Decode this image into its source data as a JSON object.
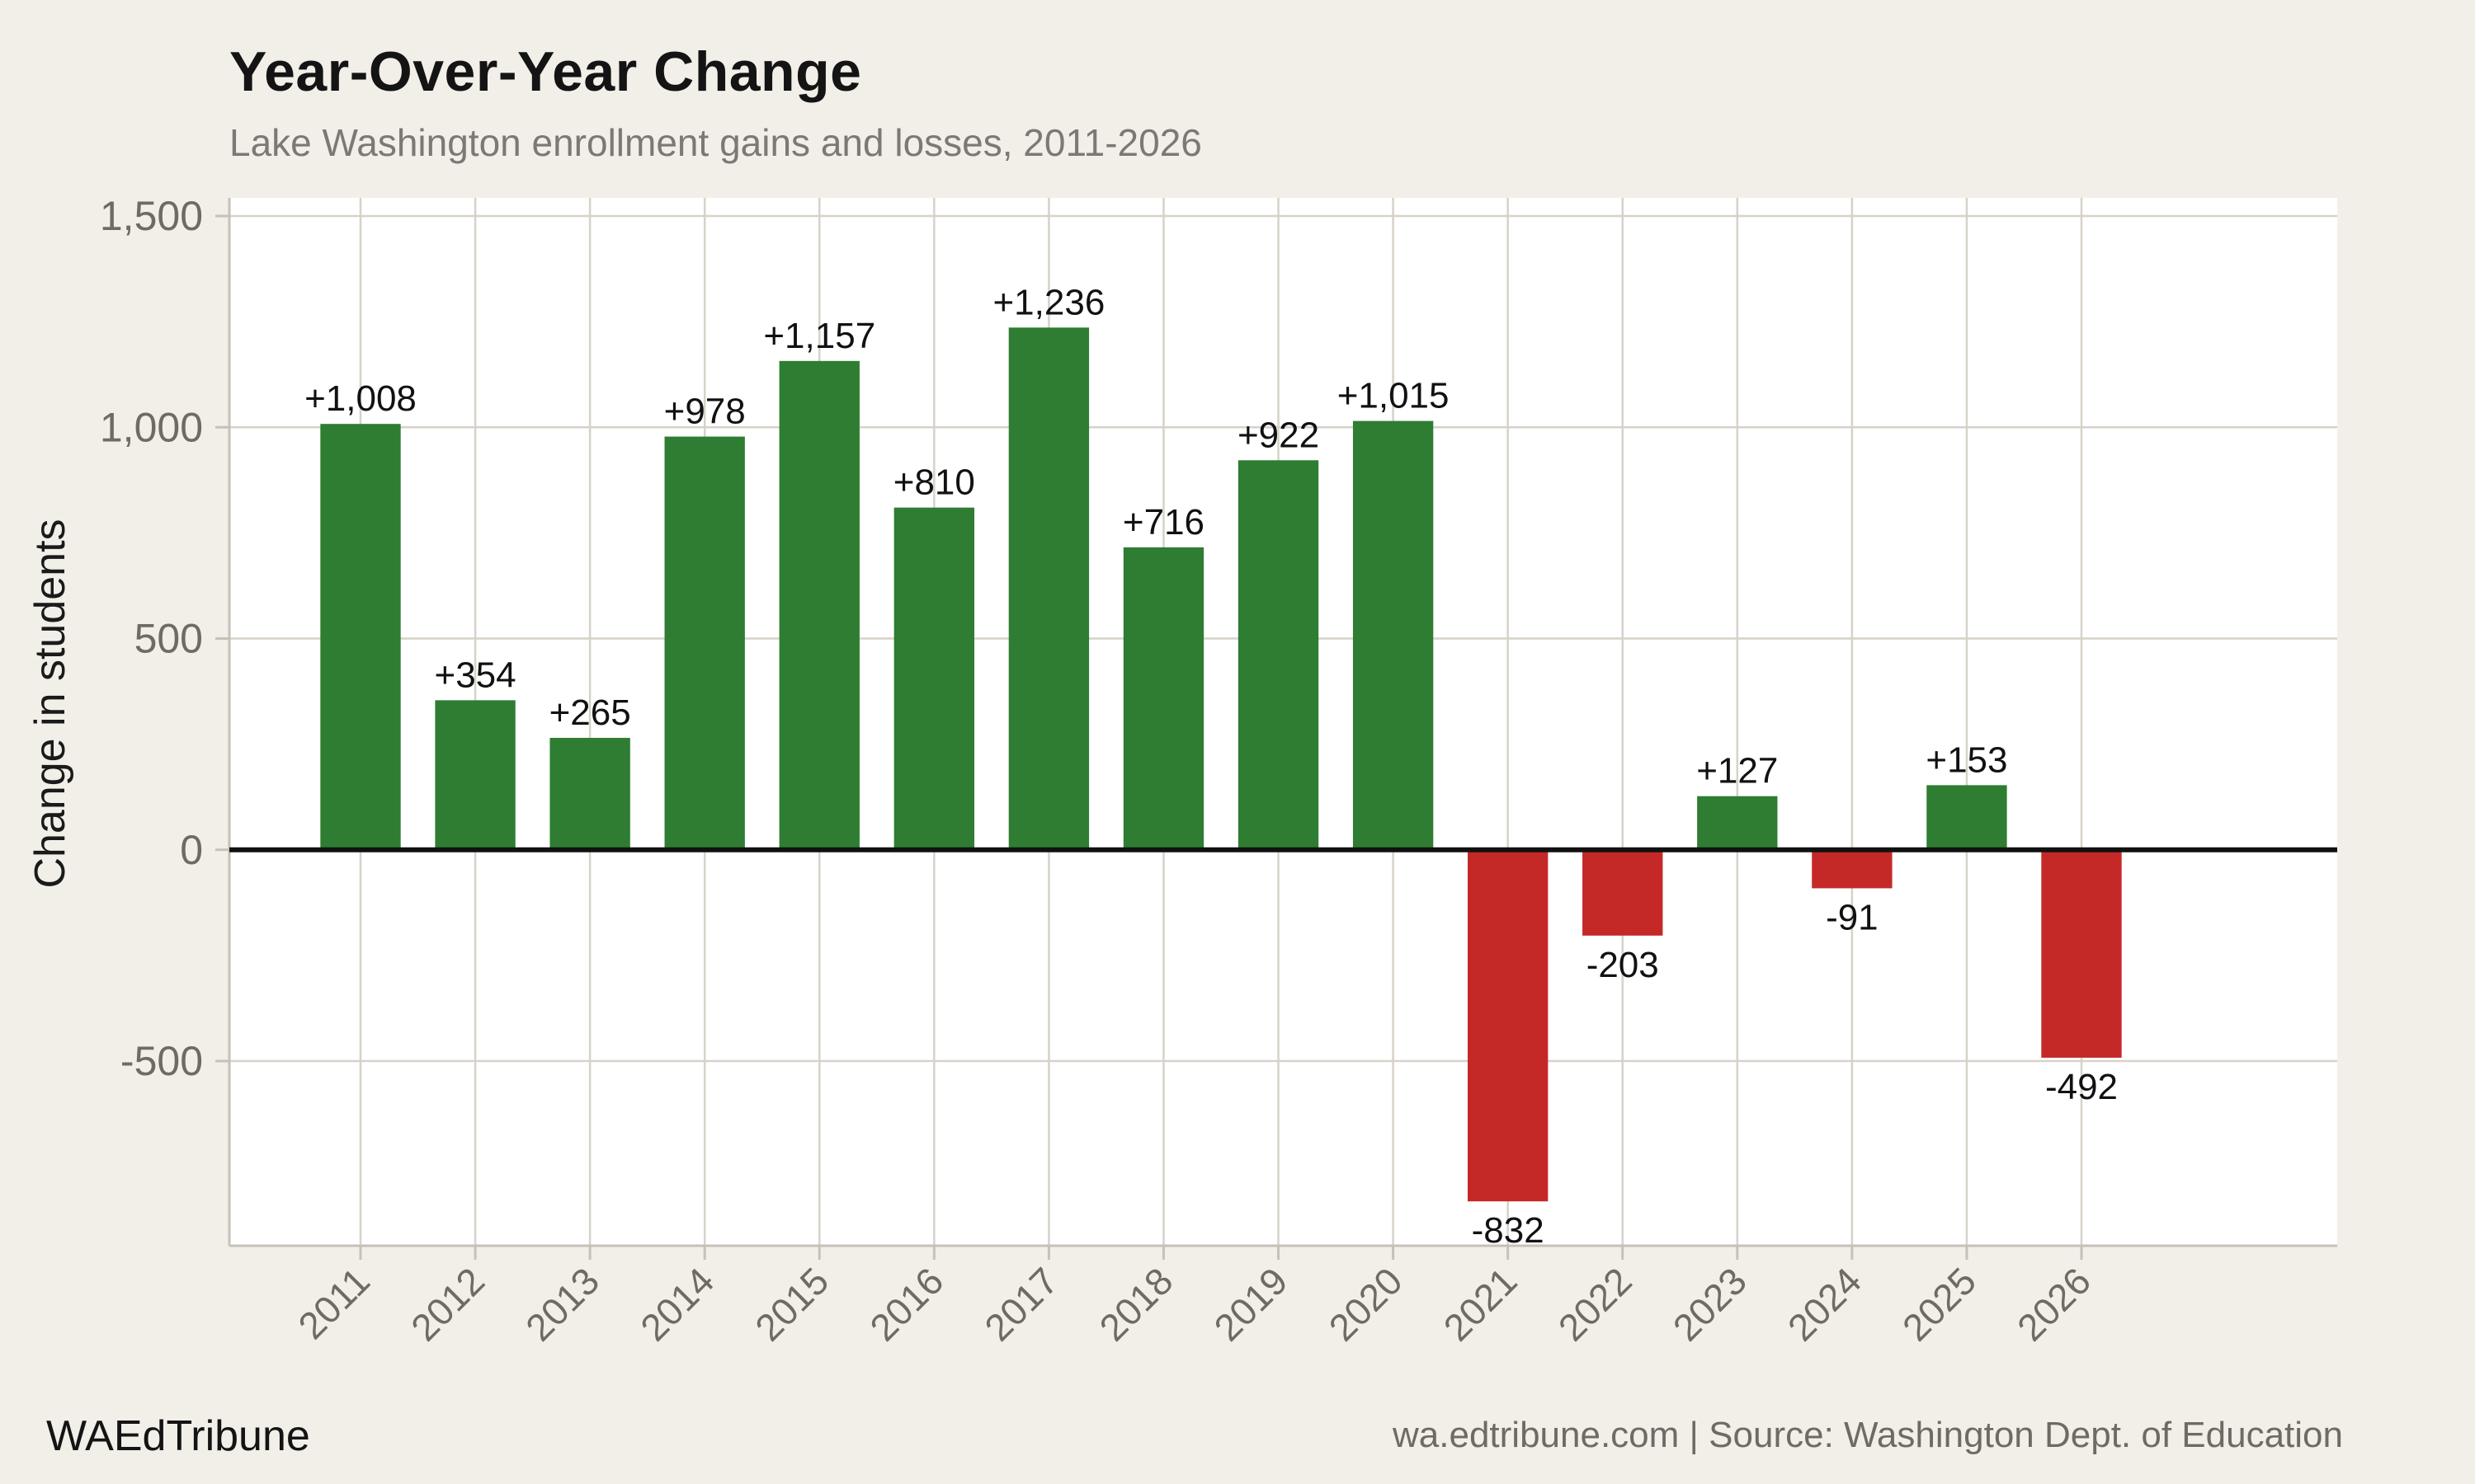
{
  "header": {
    "title": "Year-Over-Year Change",
    "subtitle": "Lake Washington enrollment gains and losses, 2011-2026"
  },
  "footer": {
    "brand": "WAEdTribune",
    "source": "wa.edtribune.com | Source: Washington Dept. of Education"
  },
  "chart_data": {
    "type": "bar",
    "title": "Year-Over-Year Change",
    "subtitle": "Lake Washington enrollment gains and losses, 2011-2026",
    "xlabel": "",
    "ylabel": "Change in students",
    "categories": [
      "2011",
      "2012",
      "2013",
      "2014",
      "2015",
      "2016",
      "2017",
      "2018",
      "2019",
      "2020",
      "2021",
      "2022",
      "2023",
      "2024",
      "2025",
      "2026"
    ],
    "values": [
      1008,
      354,
      265,
      978,
      1157,
      810,
      1236,
      716,
      922,
      1015,
      -832,
      -203,
      127,
      -91,
      153,
      -492
    ],
    "bar_labels": [
      "+1,008",
      "+354",
      "+265",
      "+978",
      "+1,157",
      "+810",
      "+1,236",
      "+716",
      "+922",
      "+1,015",
      "-832",
      "-203",
      "+127",
      "-91",
      "+153",
      "-492"
    ],
    "yticks": [
      {
        "value": 1500,
        "label": "1,500"
      },
      {
        "value": 1000,
        "label": "1,000"
      },
      {
        "value": 500,
        "label": "500"
      },
      {
        "value": 0,
        "label": "0"
      },
      {
        "value": -500,
        "label": "-500"
      }
    ],
    "ylim": [
      -937,
      1543
    ],
    "grid": true,
    "legend": false,
    "zero_line": true,
    "colors": {
      "positive_bar": "#2e7d32",
      "negative_bar": "#c42928"
    }
  },
  "colors": {
    "page_background": "#f2efe9",
    "plot_background": "#ffffff",
    "gridline": "#d7d2c9",
    "axis_line": "#c6c1b8",
    "zero_line": "#111111",
    "tick_label": "#6e6a64",
    "bar_label": "#111111",
    "axis_title": "#1a1a1a"
  }
}
